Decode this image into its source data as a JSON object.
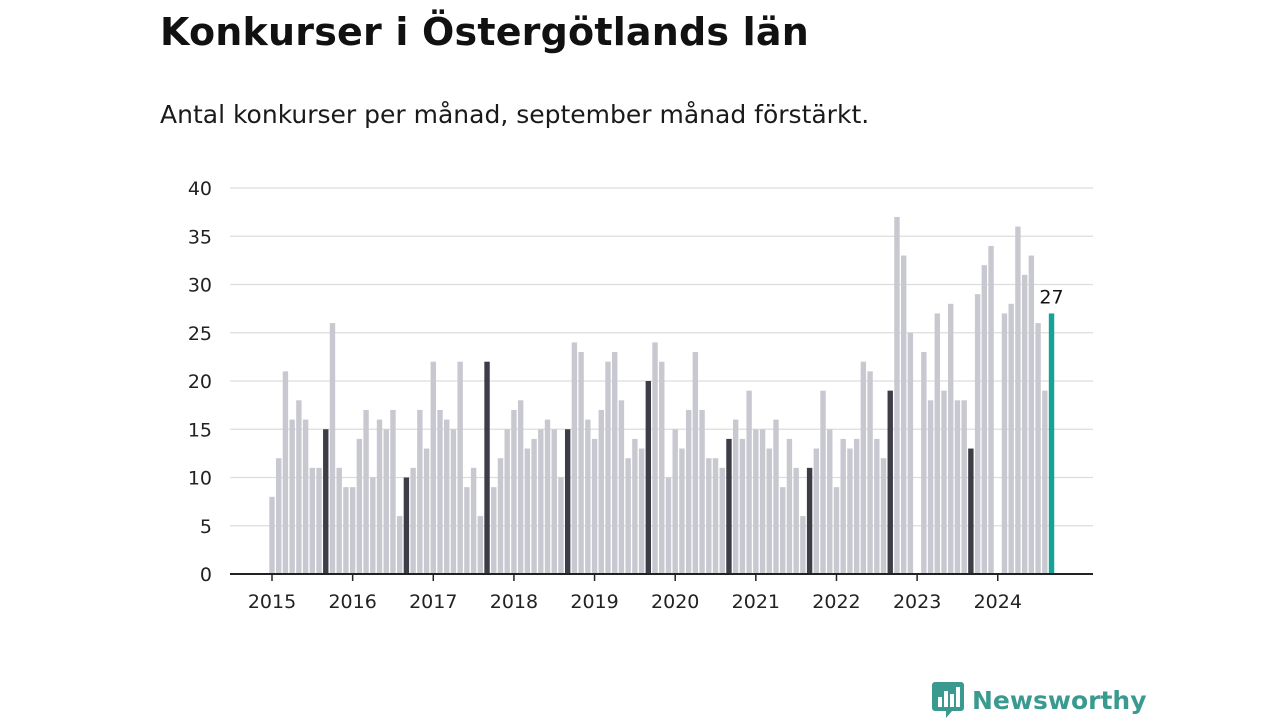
{
  "title": "Konkurser i Östergötlands län",
  "subtitle": "Antal konkurser per månad, september månad förstärkt.",
  "brand": {
    "name": "Newsworthy",
    "icon": "newsworthy-logo-icon"
  },
  "colors": {
    "regular": "#c8c8d0",
    "september": "#3d3d48",
    "latest": "#14a396",
    "grid": "#dddddd",
    "axis": "#222222"
  },
  "chart_data": {
    "type": "bar",
    "title": "",
    "xlabel": "",
    "ylabel": "",
    "ylim": [
      0,
      40
    ],
    "yticks": [
      0,
      5,
      10,
      15,
      20,
      25,
      30,
      35,
      40
    ],
    "xticks": [
      "2015",
      "2016",
      "2017",
      "2018",
      "2019",
      "2020",
      "2021",
      "2022",
      "2023",
      "2024"
    ],
    "grid": true,
    "start": "2015-01",
    "end": "2024-09",
    "highlight": "september",
    "annotation": {
      "month": "2024-09",
      "label": "27"
    },
    "series": [
      {
        "year": "2015",
        "values": [
          8,
          12,
          21,
          16,
          18,
          16,
          11,
          11,
          15,
          26,
          11,
          9
        ]
      },
      {
        "year": "2016",
        "values": [
          9,
          14,
          17,
          10,
          16,
          15,
          17,
          6,
          10,
          11,
          17,
          13
        ]
      },
      {
        "year": "2017",
        "values": [
          22,
          17,
          16,
          15,
          22,
          9,
          11,
          6,
          22,
          9,
          12,
          15
        ]
      },
      {
        "year": "2018",
        "values": [
          17,
          18,
          13,
          14,
          15,
          16,
          15,
          10,
          15,
          24,
          23,
          16
        ]
      },
      {
        "year": "2019",
        "values": [
          14,
          17,
          22,
          23,
          18,
          12,
          14,
          13,
          20,
          24,
          22,
          10
        ]
      },
      {
        "year": "2020",
        "values": [
          15,
          13,
          17,
          23,
          17,
          12,
          12,
          11,
          14,
          16,
          14,
          19
        ]
      },
      {
        "year": "2021",
        "values": [
          15,
          15,
          13,
          16,
          9,
          14,
          11,
          6,
          11,
          13,
          19,
          15
        ]
      },
      {
        "year": "2022",
        "values": [
          9,
          14,
          13,
          14,
          22,
          21,
          14,
          12,
          19,
          37,
          33,
          25
        ]
      },
      {
        "year": "2023",
        "values": [
          0,
          23,
          18,
          27,
          19,
          28,
          18,
          18,
          13,
          29,
          32,
          34
        ]
      },
      {
        "year": "2024",
        "values": [
          0,
          27,
          28,
          36,
          31,
          33,
          26,
          19,
          27
        ]
      }
    ]
  }
}
